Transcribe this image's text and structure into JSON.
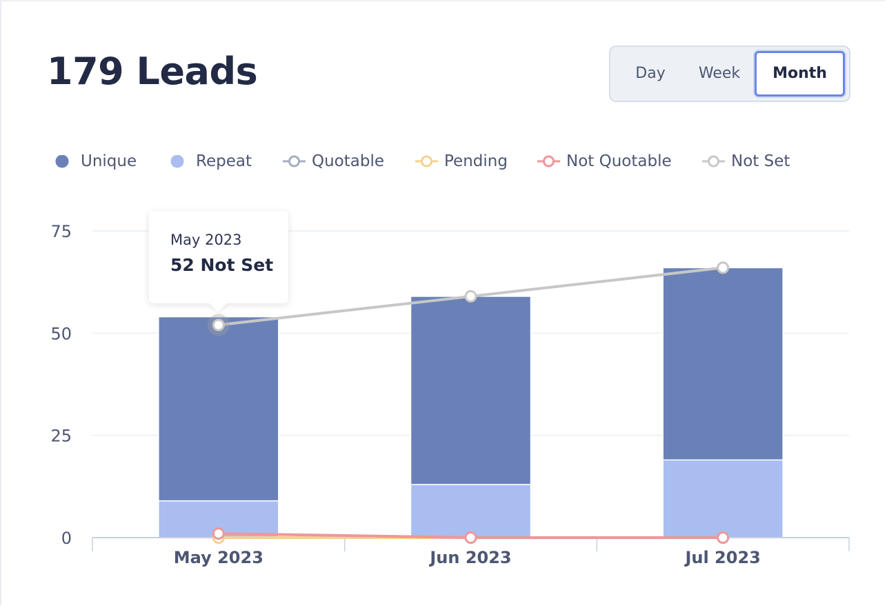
{
  "header": {
    "title": "179 Leads"
  },
  "period": {
    "options": [
      "Day",
      "Week",
      "Month"
    ],
    "selected": "Month"
  },
  "legend": [
    {
      "label": "Unique",
      "kind": "dot",
      "color": "#6a81b8"
    },
    {
      "label": "Repeat",
      "kind": "dot",
      "color": "#a9bdf0"
    },
    {
      "label": "Quotable",
      "kind": "ring",
      "color": "#a6aebd"
    },
    {
      "label": "Pending",
      "kind": "ring",
      "color": "#f5d28e"
    },
    {
      "label": "Not Quotable",
      "kind": "ring",
      "color": "#ef969a"
    },
    {
      "label": "Not Set",
      "kind": "ring",
      "color": "#c7c7c7"
    }
  ],
  "tooltip": {
    "date": "May 2023",
    "value": "52 Not Set"
  },
  "chart_data": {
    "type": "bar",
    "stacked": true,
    "categories": [
      "May 2023",
      "Jun 2023",
      "Jul 2023"
    ],
    "ylim": [
      0,
      75
    ],
    "yticks": [
      0,
      25,
      50,
      75
    ],
    "grid": true,
    "legend_position": "top-left",
    "series": [
      {
        "name": "Repeat",
        "type": "bar",
        "values": [
          9,
          13,
          19
        ],
        "color": "#a9bdf0"
      },
      {
        "name": "Unique",
        "type": "bar",
        "values": [
          45,
          46,
          47
        ],
        "color": "#6a81b8"
      },
      {
        "name": "Quotable",
        "type": "line",
        "values": [
          0,
          0,
          0
        ],
        "color": "#a6aebd"
      },
      {
        "name": "Pending",
        "type": "line",
        "values": [
          0,
          0,
          0
        ],
        "color": "#f5d28e"
      },
      {
        "name": "Not Quotable",
        "type": "line",
        "values": [
          1,
          0,
          0
        ],
        "color": "#ef969a"
      },
      {
        "name": "Not Set",
        "type": "line",
        "values": [
          52,
          59,
          66
        ],
        "color": "#c7c7c7"
      }
    ]
  }
}
